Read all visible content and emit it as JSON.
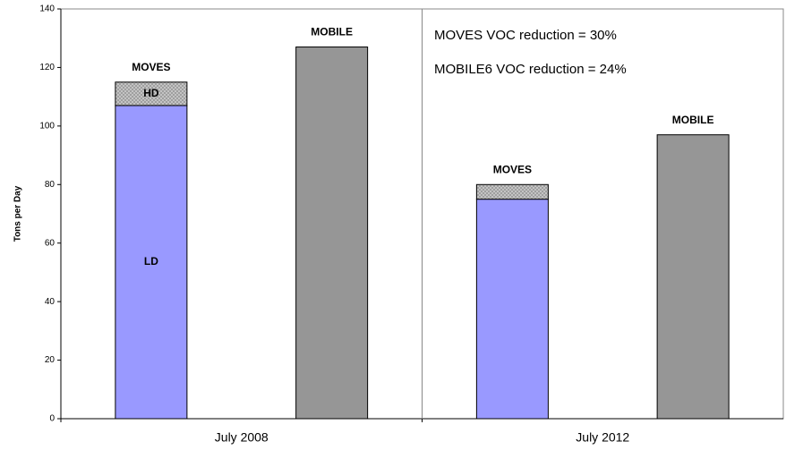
{
  "chart_data": {
    "type": "bar",
    "y_label": "Tons per Day",
    "categories": [
      "July 2008",
      "July 2012"
    ],
    "group_label": "MOVES",
    "series": [
      {
        "name": "LD",
        "color": "#9999ff",
        "values": [
          107,
          75
        ]
      },
      {
        "name": "HD",
        "color": "#c8c8c8",
        "values": [
          8,
          5
        ]
      },
      {
        "name": "MOBILE",
        "color": "#969696",
        "values": [
          127,
          97
        ]
      }
    ],
    "annotations": [
      "MOVES VOC reduction = 30%",
      "MOBILE6 VOC reduction = 24%"
    ],
    "ylim": [
      0,
      140
    ],
    "yticks": [
      0,
      20,
      40,
      60,
      80,
      100,
      120,
      140
    ],
    "grid": false
  }
}
